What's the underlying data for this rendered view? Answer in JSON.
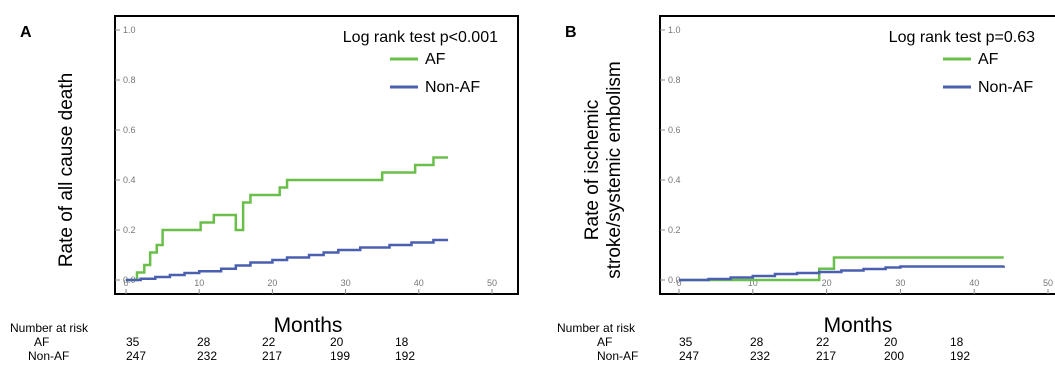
{
  "chart_data": [
    {
      "type": "line",
      "subtype": "kaplan-meier-step",
      "panel": "A",
      "ylabel": "Rate of all cause death",
      "xlabel": "Months",
      "legend_title": "Log rank test p<0.001",
      "legend_position": "top-right",
      "xlim": [
        0,
        50
      ],
      "ylim": [
        0,
        1.0
      ],
      "xticks": [
        "0",
        "10",
        "20",
        "30",
        "40",
        "50"
      ],
      "yticks": [
        "0.0",
        "0.2",
        "0.4",
        "0.6",
        "0.8",
        "1.0"
      ],
      "series": [
        {
          "name": "AF",
          "color": "#6abf4b",
          "points": [
            [
              0,
              0
            ],
            [
              1.5,
              0.03
            ],
            [
              2.5,
              0.06
            ],
            [
              3.3,
              0.11
            ],
            [
              4.2,
              0.14
            ],
            [
              5,
              0.2
            ],
            [
              15,
              0.2
            ],
            [
              10.2,
              0.23
            ],
            [
              12,
              0.26
            ],
            [
              16,
              0.31
            ],
            [
              17,
              0.34
            ],
            [
              21,
              0.37
            ],
            [
              22,
              0.4
            ],
            [
              35,
              0.43
            ],
            [
              39.5,
              0.46
            ],
            [
              42,
              0.49
            ],
            [
              44,
              0.49
            ]
          ]
        },
        {
          "name": "Non-AF",
          "color": "#4a5fb0",
          "points": [
            [
              0,
              0
            ],
            [
              2,
              0.005
            ],
            [
              4,
              0.012
            ],
            [
              6,
              0.02
            ],
            [
              8,
              0.028
            ],
            [
              10,
              0.035
            ],
            [
              13,
              0.045
            ],
            [
              15,
              0.058
            ],
            [
              17,
              0.07
            ],
            [
              20,
              0.08
            ],
            [
              22,
              0.09
            ],
            [
              25,
              0.1
            ],
            [
              27,
              0.11
            ],
            [
              29,
              0.12
            ],
            [
              32,
              0.13
            ],
            [
              36,
              0.14
            ],
            [
              39,
              0.15
            ],
            [
              42,
              0.16
            ],
            [
              44,
              0.16
            ]
          ]
        }
      ],
      "risk_table": {
        "title": "Number at risk",
        "rows": [
          {
            "label": "AF",
            "values": [
              "35",
              "28",
              "22",
              "20",
              "18"
            ]
          },
          {
            "label": "Non-AF",
            "values": [
              "247",
              "232",
              "217",
              "199",
              "192"
            ]
          }
        ]
      }
    },
    {
      "type": "line",
      "subtype": "kaplan-meier-step",
      "panel": "B",
      "ylabel_lines": [
        "Rate of ischemic",
        "stroke/systemic embolism"
      ],
      "xlabel": "Months",
      "legend_title": "Log rank test p=0.63",
      "legend_position": "top-right",
      "xlim": [
        0,
        50
      ],
      "ylim": [
        0,
        1.0
      ],
      "xticks": [
        "0",
        "10",
        "20",
        "30",
        "40",
        "50"
      ],
      "yticks": [
        "0.0",
        "0.2",
        "0.4",
        "0.6",
        "0.8",
        "1.0"
      ],
      "series": [
        {
          "name": "AF",
          "color": "#6abf4b",
          "points": [
            [
              0,
              0
            ],
            [
              19,
              0
            ],
            [
              19,
              0.045
            ],
            [
              21,
              0.045
            ],
            [
              21,
              0.09
            ],
            [
              44,
              0.09
            ]
          ]
        },
        {
          "name": "Non-AF",
          "color": "#4a5fb0",
          "points": [
            [
              0,
              0
            ],
            [
              4,
              0.004
            ],
            [
              7,
              0.01
            ],
            [
              10,
              0.016
            ],
            [
              13,
              0.024
            ],
            [
              16,
              0.028
            ],
            [
              19,
              0.032
            ],
            [
              22,
              0.038
            ],
            [
              25,
              0.044
            ],
            [
              28,
              0.05
            ],
            [
              30,
              0.054
            ],
            [
              44,
              0.057
            ]
          ]
        }
      ],
      "risk_table": {
        "title": "Number at risk",
        "rows": [
          {
            "label": "AF",
            "values": [
              "35",
              "28",
              "22",
              "20",
              "18"
            ]
          },
          {
            "label": "Non-AF",
            "values": [
              "247",
              "232",
              "217",
              "200",
              "192"
            ]
          }
        ]
      }
    }
  ]
}
